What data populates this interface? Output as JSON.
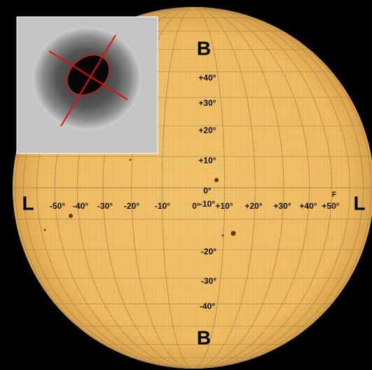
{
  "labels": {
    "north": "B",
    "south": "B",
    "east": "L",
    "west": "L",
    "marker": "F"
  },
  "latitude_labels": [
    "+40°",
    "+30°",
    "+20°",
    "+10°",
    "0°",
    "-10°",
    "-20°",
    "-30°",
    "-40°"
  ],
  "longitude_labels": [
    "-50°",
    "-40°",
    "-30°",
    "-20°",
    "-10°",
    "0°",
    "+10°",
    "+20°",
    "+30°",
    "+40°",
    "+50°"
  ]
}
